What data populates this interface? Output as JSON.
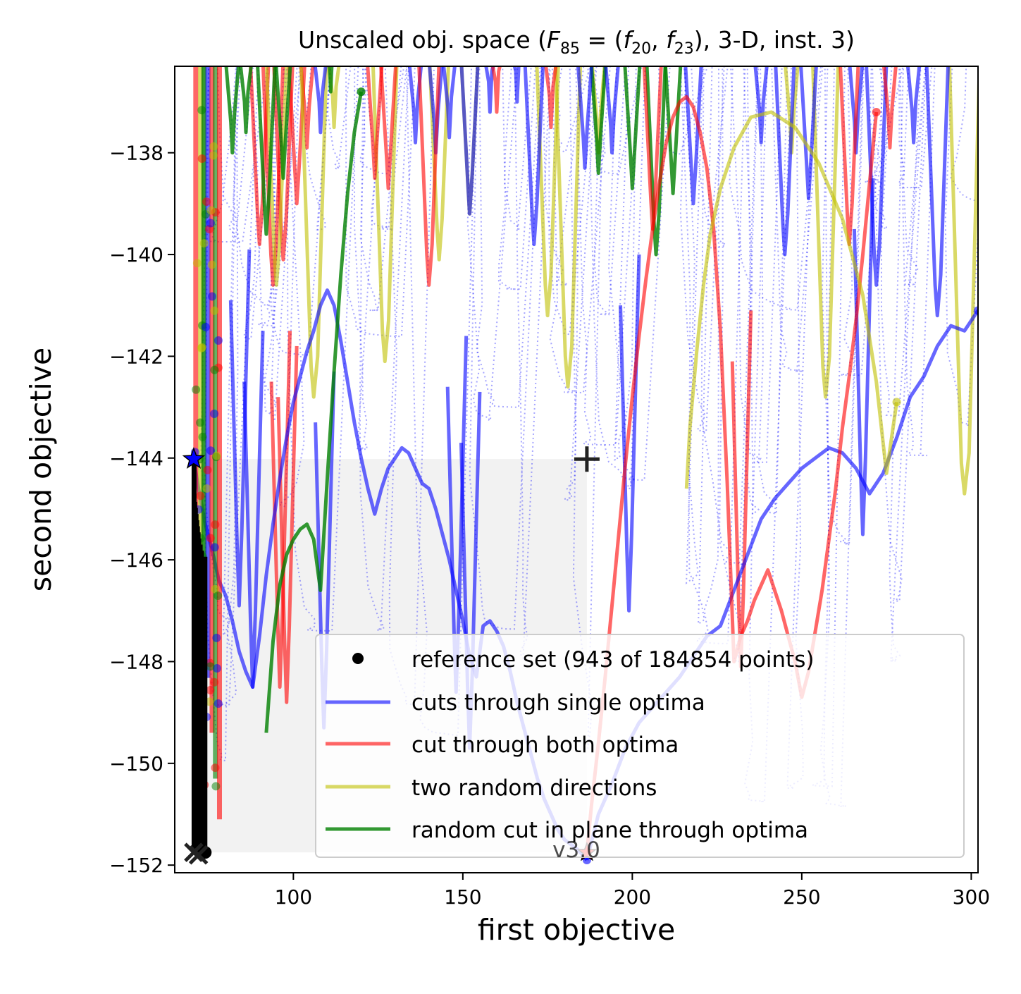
{
  "chart_data": {
    "type": "line",
    "title": "Unscaled obj. space (F₈₅ = (f₂₀, f₂₃), 3-D, inst. 3)",
    "title_parts": {
      "prefix": "Unscaled obj. space (",
      "F": "F",
      "F_sub": "85",
      "eq": " = (",
      "f1": "f",
      "f1_sub": "20",
      "comma": ", ",
      "f2": "f",
      "f2_sub": "23",
      "suffix": "), 3-D, inst. 3)"
    },
    "xlabel": "first objective",
    "ylabel": "second objective",
    "xlim": [
      65,
      302
    ],
    "ylim": [
      -152.15,
      -136.3
    ],
    "x_ticks": [
      {
        "value": 100,
        "label": "100"
      },
      {
        "value": 150,
        "label": "150"
      },
      {
        "value": 200,
        "label": "200"
      },
      {
        "value": 250,
        "label": "250"
      },
      {
        "value": 300,
        "label": "300"
      }
    ],
    "y_ticks": [
      {
        "value": -138,
        "label": "−138"
      },
      {
        "value": -140,
        "label": "−140"
      },
      {
        "value": -142,
        "label": "−142"
      },
      {
        "value": -144,
        "label": "−144"
      },
      {
        "value": -146,
        "label": "−146"
      },
      {
        "value": -148,
        "label": "−148"
      },
      {
        "value": -150,
        "label": "−150"
      },
      {
        "value": -152,
        "label": "−152"
      }
    ],
    "grid": false,
    "legend_position": "lower-right",
    "legend": [
      {
        "label": "reference set (943 of 184854 points)",
        "kind": "dot",
        "color": "#000000"
      },
      {
        "label": "cuts through single optima",
        "kind": "line",
        "color": "#0000ff"
      },
      {
        "label": "cut through both optima",
        "kind": "line",
        "color": "#ff0000"
      },
      {
        "label": "two random directions",
        "kind": "line",
        "color": "#bfbf00"
      },
      {
        "label": "random cut in plane through optima",
        "kind": "line",
        "color": "#008000"
      }
    ],
    "version_label": "v3.0",
    "dominated_region": {
      "x": [
        70.6,
        186.6
      ],
      "y": [
        -151.75,
        -144.02
      ],
      "color": "#f2f2f2"
    },
    "markers": {
      "plus": {
        "x": 186.6,
        "y": -144.02
      },
      "star_blue": {
        "x": 70.6,
        "y": -144.02,
        "color": "#0000ff"
      },
      "star_red": {
        "x": 186.6,
        "y": -151.75,
        "color": "#ff0000"
      },
      "x_black": [
        {
          "x": 70.6,
          "y": -151.75
        },
        {
          "x": 72.0,
          "y": -151.8
        }
      ]
    },
    "reference_set": {
      "x": [
        70.6,
        70.8,
        71.0,
        71.2,
        71.4,
        71.6,
        71.8,
        72.0,
        72.2,
        72.6,
        73.0,
        74.0
      ],
      "y_range": [
        -151.75,
        -144.02
      ],
      "color": "#000000"
    },
    "series": [
      {
        "group": "cuts through single optima",
        "style": "solid",
        "color": "#0000ff",
        "x": [
          70.6,
          72,
          74,
          76,
          78,
          80,
          82,
          84,
          86,
          88,
          90,
          92,
          94,
          96,
          98,
          100,
          102,
          104,
          106,
          108,
          110,
          112,
          114,
          116,
          118,
          120,
          122,
          124,
          126,
          128,
          130,
          132,
          134,
          136,
          138,
          140,
          142,
          144,
          146,
          148,
          150,
          152,
          154,
          156,
          158,
          160,
          162,
          164,
          166,
          168,
          170,
          172,
          174,
          176,
          178,
          180,
          182,
          184,
          186.6
        ],
        "y": [
          -144.02,
          -144.6,
          -145.3,
          -145.8,
          -146.4,
          -146.7,
          -147.2,
          -147.8,
          -148.2,
          -148.5,
          -147.5,
          -146.3,
          -145.3,
          -144.4,
          -143.6,
          -142.9,
          -142.4,
          -141.9,
          -141.5,
          -141.0,
          -140.7,
          -141.0,
          -141.7,
          -142.5,
          -143.3,
          -144.0,
          -144.6,
          -145.1,
          -144.6,
          -144.2,
          -144.0,
          -143.8,
          -143.9,
          -144.2,
          -144.5,
          -144.6,
          -145.0,
          -145.5,
          -146.0,
          -146.6,
          -147.2,
          -147.9,
          -148.3,
          -147.3,
          -147.2,
          -147.4,
          -147.7,
          -148.2,
          -148.8,
          -149.3,
          -149.8,
          -150.3,
          -150.7,
          -151.0,
          -151.3,
          -151.5,
          -151.6,
          -151.7,
          -151.9
        ]
      },
      {
        "group": "cuts through single optima",
        "style": "solid",
        "color": "#0000ff",
        "x": [
          186.6,
          190,
          194,
          198,
          202,
          206,
          210,
          214,
          218,
          222,
          226,
          230,
          234,
          238,
          242,
          246,
          250,
          254,
          258,
          262,
          266,
          270,
          274,
          278,
          282,
          286,
          290,
          294,
          298,
          302
        ],
        "y": [
          -151.9,
          -151.0,
          -150.4,
          -149.7,
          -149.2,
          -148.9,
          -148.6,
          -148.3,
          -147.9,
          -147.5,
          -147.3,
          -146.6,
          -145.9,
          -145.2,
          -144.8,
          -144.5,
          -144.2,
          -144.0,
          -143.8,
          -143.9,
          -144.2,
          -144.7,
          -144.3,
          -143.6,
          -142.8,
          -142.4,
          -141.8,
          -141.4,
          -141.5,
          -141.1
        ]
      },
      {
        "group": "cut through both optima",
        "style": "solid",
        "color": "#ff0000",
        "x": [
          186.6,
          188,
          190,
          192,
          194,
          196,
          198,
          200,
          202,
          204,
          206,
          208,
          210,
          212,
          214,
          216,
          218,
          220,
          222,
          224,
          226,
          228,
          230,
          232,
          234,
          236,
          238,
          240,
          242,
          244,
          246,
          248,
          250,
          252,
          254,
          256,
          258,
          260,
          262,
          264,
          266,
          268,
          270,
          272
        ],
        "y": [
          -151.75,
          -150.8,
          -149.6,
          -148.3,
          -146.9,
          -145.5,
          -144.1,
          -142.8,
          -141.6,
          -140.5,
          -139.5,
          -138.6,
          -137.8,
          -137.3,
          -137.0,
          -136.9,
          -137.1,
          -137.6,
          -138.3,
          -139.5,
          -141.5,
          -144.5,
          -148.0,
          -147.5,
          -147.2,
          -146.8,
          -146.5,
          -146.2,
          -146.6,
          -147.0,
          -147.5,
          -148.0,
          -148.7,
          -148.2,
          -147.4,
          -146.6,
          -145.6,
          -144.6,
          -143.4,
          -142.4,
          -141.3,
          -140.0,
          -138.6,
          -137.2
        ]
      },
      {
        "group": "two random directions",
        "style": "solid",
        "color": "#bfbf00",
        "x": [
          216,
          217,
          219,
          221,
          223,
          226,
          230,
          235,
          241,
          248,
          255,
          262,
          268,
          272,
          275,
          278
        ],
        "y": [
          -144.6,
          -143.4,
          -141.9,
          -140.6,
          -139.6,
          -138.7,
          -137.9,
          -137.3,
          -137.2,
          -137.5,
          -138.2,
          -139.3,
          -140.8,
          -142.5,
          -144.3,
          -142.9
        ]
      },
      {
        "group": "random cut in plane through optima",
        "style": "solid",
        "color": "#008000",
        "x": [
          92,
          94,
          96,
          98,
          100,
          102,
          104,
          106,
          108,
          110,
          112,
          114,
          116,
          118,
          120
        ],
        "y": [
          -149.4,
          -147.6,
          -146.5,
          -145.9,
          -145.6,
          -145.4,
          -145.3,
          -145.6,
          -146.6,
          -144.4,
          -142.3,
          -140.4,
          -138.8,
          -137.6,
          -136.8
        ]
      }
    ]
  }
}
